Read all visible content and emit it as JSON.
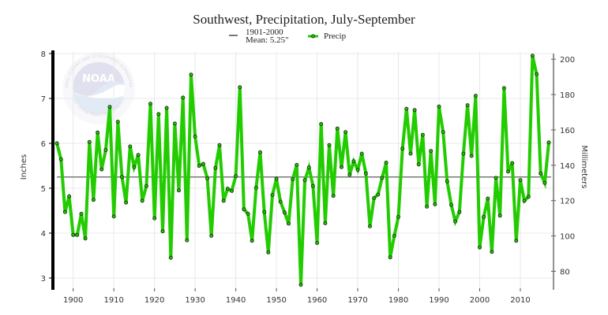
{
  "chart_data": {
    "type": "line",
    "title": "Southwest, Precipitation, July-September",
    "ylabel": "Inches",
    "ylabel_right": "Millimeters",
    "xlabel": "",
    "xlim": [
      1895,
      2018
    ],
    "ylim": [
      2.75,
      8.05
    ],
    "xticks": [
      1900,
      1910,
      1920,
      1930,
      1940,
      1950,
      1960,
      1970,
      1980,
      1990,
      2000,
      2010
    ],
    "yticks": [
      3,
      4,
      5,
      6,
      7,
      8
    ],
    "yticks_right": [
      80,
      100,
      120,
      140,
      160,
      180,
      200
    ],
    "grid": true,
    "legend_position": "top-center",
    "legend": {
      "mean_label_line1": "1901-2000",
      "mean_label_line2": "Mean: 5.25\"",
      "series_label": "Precip"
    },
    "mean_value": 5.25,
    "colors": {
      "series": "#22cc00",
      "marker_edge": "#1a3a10",
      "mean": "#777777",
      "grid": "#e8e8e8",
      "axis_left": "#000000",
      "axis_right": "#777777"
    },
    "series": [
      {
        "name": "Precip",
        "x": [
          1896,
          1897,
          1898,
          1899,
          1900,
          1901,
          1902,
          1903,
          1904,
          1905,
          1906,
          1907,
          1908,
          1909,
          1910,
          1911,
          1912,
          1913,
          1914,
          1915,
          1916,
          1917,
          1918,
          1919,
          1920,
          1921,
          1922,
          1923,
          1924,
          1925,
          1926,
          1927,
          1928,
          1929,
          1930,
          1931,
          1932,
          1933,
          1934,
          1935,
          1936,
          1937,
          1938,
          1939,
          1940,
          1941,
          1942,
          1943,
          1944,
          1945,
          1946,
          1947,
          1948,
          1949,
          1950,
          1951,
          1952,
          1953,
          1954,
          1955,
          1956,
          1957,
          1958,
          1959,
          1960,
          1961,
          1962,
          1963,
          1964,
          1965,
          1966,
          1967,
          1968,
          1969,
          1970,
          1971,
          1972,
          1973,
          1974,
          1975,
          1976,
          1977,
          1978,
          1979,
          1980,
          1981,
          1982,
          1983,
          1984,
          1985,
          1986,
          1987,
          1988,
          1989,
          1990,
          1991,
          1992,
          1993,
          1994,
          1995,
          1996,
          1997,
          1998,
          1999,
          2000,
          2001,
          2002,
          2003,
          2004,
          2005,
          2006,
          2007,
          2008,
          2009,
          2010,
          2011,
          2012,
          2013,
          2014,
          2015,
          2016,
          2017
        ],
        "values": [
          6.0,
          5.64,
          4.47,
          4.82,
          3.96,
          3.96,
          4.43,
          3.88,
          6.03,
          4.74,
          6.24,
          5.42,
          5.85,
          6.81,
          4.37,
          6.48,
          5.25,
          4.68,
          5.93,
          5.47,
          5.74,
          4.72,
          5.05,
          6.88,
          4.33,
          6.65,
          4.04,
          6.79,
          3.45,
          6.44,
          4.95,
          7.02,
          3.84,
          7.53,
          6.15,
          5.5,
          5.54,
          5.22,
          3.94,
          5.45,
          5.96,
          4.72,
          4.99,
          4.94,
          5.27,
          7.25,
          4.53,
          4.43,
          3.83,
          5.01,
          5.8,
          4.47,
          3.57,
          4.85,
          5.21,
          4.7,
          4.46,
          4.21,
          5.2,
          5.52,
          2.85,
          5.18,
          5.46,
          5.05,
          3.78,
          6.43,
          4.22,
          5.96,
          4.83,
          6.33,
          5.47,
          6.25,
          5.3,
          5.6,
          5.41,
          5.77,
          5.33,
          4.15,
          4.78,
          4.86,
          5.23,
          5.57,
          3.46,
          3.94,
          4.36,
          5.88,
          6.77,
          5.77,
          6.74,
          5.53,
          6.19,
          4.59,
          5.83,
          4.64,
          6.82,
          6.25,
          5.15,
          4.63,
          4.26,
          4.47,
          5.77,
          6.85,
          5.72,
          7.06,
          3.68,
          4.36,
          4.77,
          3.58,
          5.23,
          4.39,
          7.23,
          5.37,
          5.56,
          3.83,
          5.18,
          4.72,
          4.81,
          7.95,
          7.54,
          5.33,
          5.12,
          6.02
        ]
      }
    ],
    "watermark": {
      "logo_text": "NOAA",
      "ring_text_top": "NATIONAL OCEANIC AND ATMOSPHERIC ADMINISTRATION",
      "ring_text_bottom": "U.S. DEPARTMENT OF COMMERCE"
    }
  }
}
